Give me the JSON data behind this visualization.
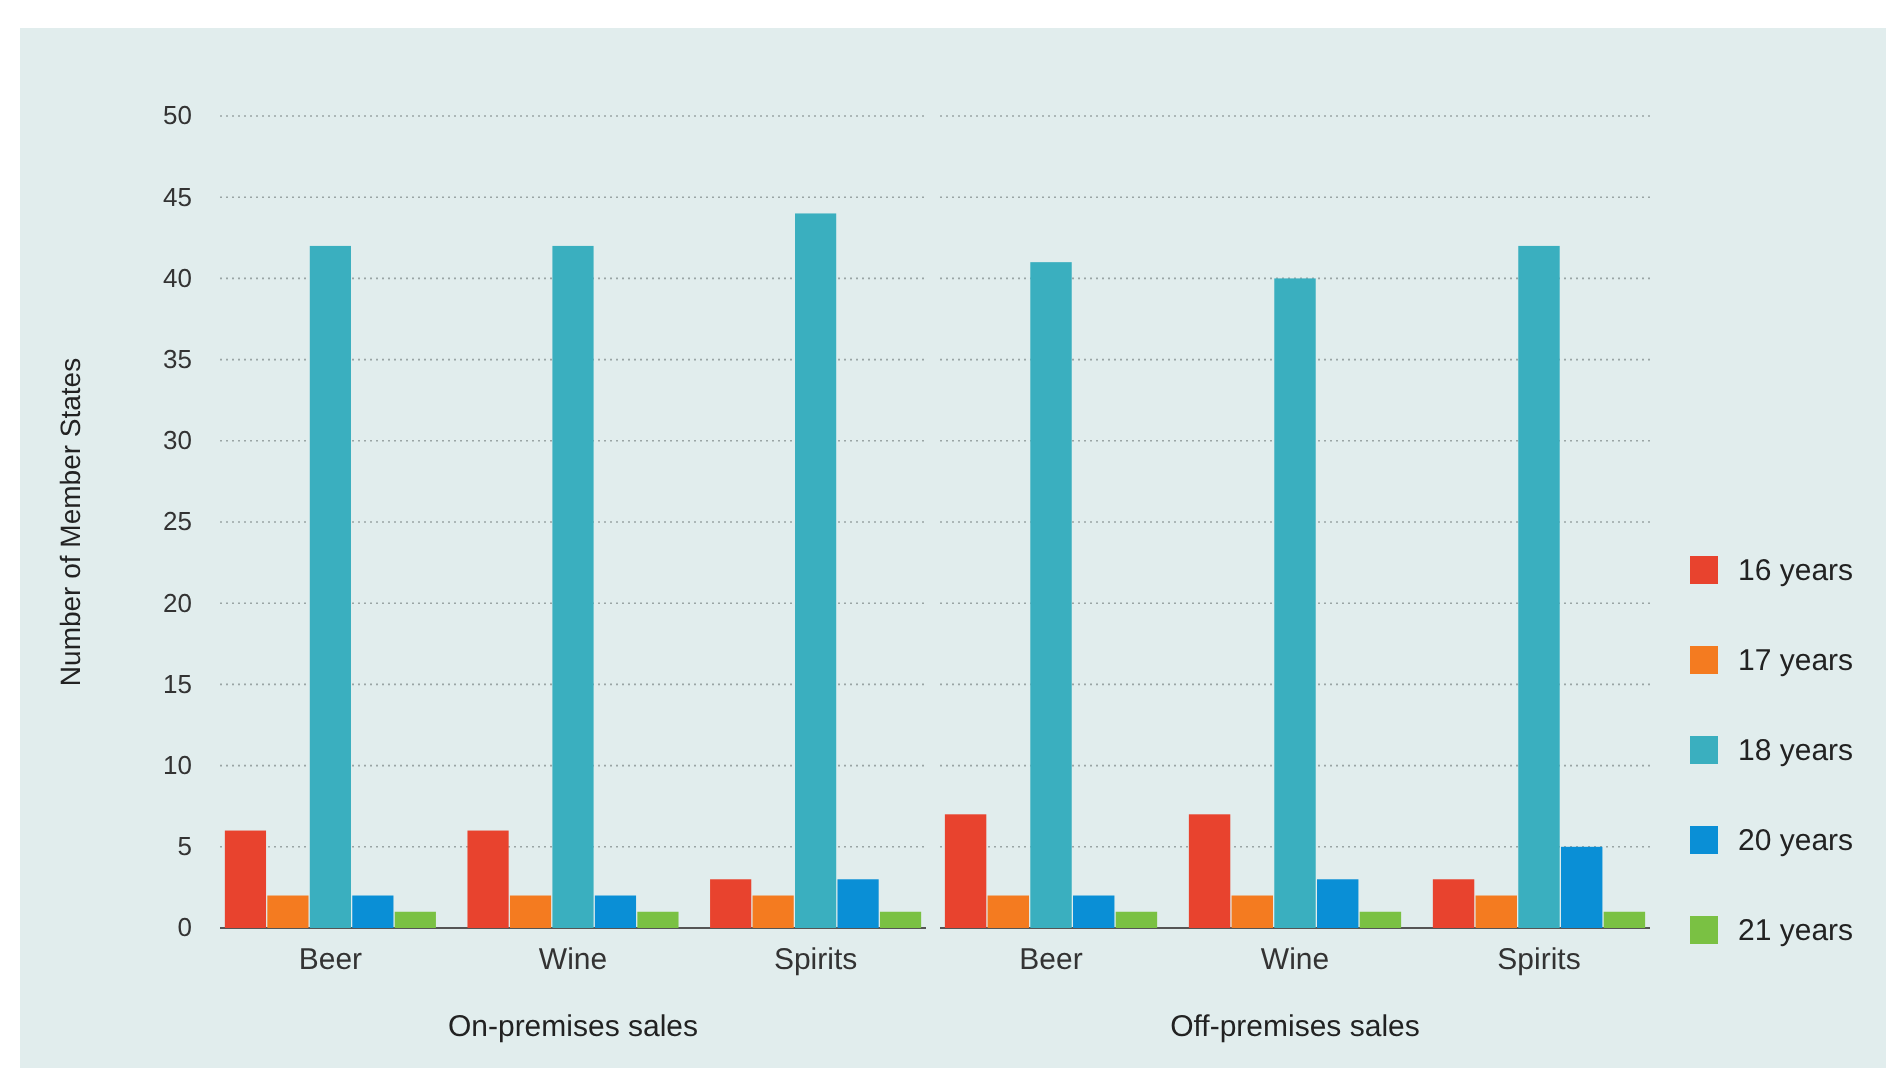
{
  "chart_data": [
    {
      "type": "bar",
      "xlabel": "On-premises sales",
      "ylabel": "Number of Member States",
      "categories": [
        "Beer",
        "Wine",
        "Spirits"
      ],
      "ylim": [
        0,
        50
      ],
      "yticks": [
        0,
        5,
        10,
        15,
        20,
        25,
        30,
        35,
        40,
        45,
        50
      ],
      "grid": "y",
      "legend": false,
      "series": [
        {
          "color": "#e8432e",
          "values": [
            6,
            6,
            3
          ]
        },
        {
          "color": "#f47b20",
          "values": [
            2,
            2,
            2
          ]
        },
        {
          "color": "#3aafbf",
          "values": [
            42,
            42,
            44
          ]
        },
        {
          "color": "#0a8fd6",
          "values": [
            2,
            2,
            3
          ]
        },
        {
          "color": "#7ac143",
          "values": [
            1,
            1,
            1
          ]
        }
      ]
    },
    {
      "type": "bar",
      "xlabel": "Off-premises sales",
      "categories": [
        "Beer",
        "Wine",
        "Spirits"
      ],
      "ylim": [
        0,
        50
      ],
      "yticks": [
        0,
        5,
        10,
        15,
        20,
        25,
        30,
        35,
        40,
        45,
        50
      ],
      "grid": "y",
      "legend": "right",
      "tick_labels": "x",
      "series": [
        {
          "name": "16 years",
          "color": "#e8432e",
          "values": [
            7,
            7,
            3
          ]
        },
        {
          "name": "17 years",
          "color": "#f47b20",
          "values": [
            2,
            2,
            2
          ]
        },
        {
          "name": "18 years",
          "color": "#3aafbf",
          "values": [
            41,
            40,
            42
          ]
        },
        {
          "name": "20 years",
          "color": "#0a8fd6",
          "values": [
            2,
            3,
            5
          ]
        },
        {
          "name": "21 years",
          "color": "#7ac143",
          "values": [
            1,
            1,
            1
          ]
        }
      ]
    }
  ]
}
